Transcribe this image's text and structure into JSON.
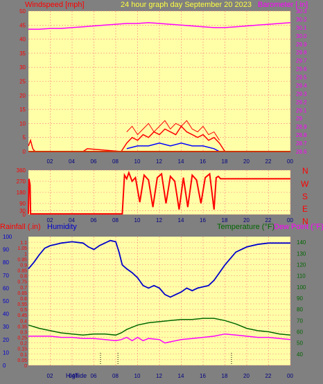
{
  "header": {
    "left_label": "Windspeed [mph]",
    "center_label": "24 hour graph day   September 20 2023",
    "right_label": "Barometer [.in]"
  },
  "lower_header": {
    "rain_label": "Rainfall (.in)",
    "humidity_label": "Humidity",
    "temp_label": "Temperature (°F)",
    "dew_label": "Dew Point (°F)"
  },
  "compass_labels": [
    "N",
    "W",
    "S",
    "E",
    "N"
  ],
  "colors": {
    "plot_bg": "#ffffa8",
    "grid": "#ff8080",
    "wind_left": "#ff0000",
    "barometer": "#ff00ff",
    "humidity": "#0000cc",
    "temperature": "#006600",
    "dewpoint": "#ff00ff",
    "header_yellow": "#ffff40"
  },
  "time_axis": {
    "ticks": [
      "02",
      "04",
      "06",
      "08",
      "10",
      "12",
      "14",
      "16",
      "18",
      "20",
      "22",
      "00"
    ],
    "bottom_marker_labels": [
      "High",
      "Tide"
    ]
  },
  "chart_data": [
    {
      "type": "line",
      "title": "24 hour graph day   September 20 2023",
      "x_unit": "hour of day",
      "xlim": [
        0,
        24
      ],
      "ylabel": "Windspeed [mph]",
      "ylim": [
        0,
        50
      ],
      "yticks": [
        0,
        5,
        10,
        15,
        20,
        25,
        30,
        35,
        40,
        45,
        50
      ],
      "y2label": "Barometer [.in]",
      "y2lim": [
        28.6,
        30.3
      ],
      "y2ticks": [
        28.6,
        28.7,
        28.8,
        28.9,
        29.0,
        29.1,
        29.2,
        29.3,
        29.4,
        29.5,
        29.6,
        29.7,
        29.8,
        29.9,
        30.0,
        30.1,
        30.2,
        30.3
      ],
      "series": [
        {
          "name": "Barometer",
          "axis": "right",
          "x": [
            0,
            1,
            2,
            3,
            4,
            5,
            6,
            7,
            8,
            9,
            10,
            11,
            12,
            13,
            14,
            15,
            16,
            17,
            18,
            19,
            20,
            21,
            22,
            23,
            24
          ],
          "values": [
            30.08,
            30.08,
            30.09,
            30.09,
            30.1,
            30.11,
            30.12,
            30.13,
            30.14,
            30.15,
            30.15,
            30.16,
            30.15,
            30.14,
            30.13,
            30.12,
            30.11,
            30.1,
            30.1,
            30.11,
            30.12,
            30.13,
            30.14,
            30.15,
            30.16
          ]
        },
        {
          "name": "Windspeed",
          "axis": "left",
          "x": [
            0,
            0.2,
            0.4,
            0.6,
            1,
            5,
            5.4,
            8.5,
            9,
            9.5,
            10,
            10.5,
            11,
            11.5,
            12,
            12.5,
            13,
            13.5,
            14,
            14.5,
            15,
            15.5,
            16,
            16.5,
            17,
            17.5,
            18,
            24
          ],
          "values": [
            2,
            4,
            1,
            0,
            0,
            0,
            1,
            0,
            3,
            5,
            4,
            6,
            5,
            7,
            6,
            8,
            7,
            6,
            9,
            7,
            6,
            5,
            6,
            4,
            5,
            3,
            0,
            0
          ]
        },
        {
          "name": "Gust",
          "axis": "left",
          "x": [
            9,
            9.5,
            10,
            10.5,
            11,
            11.5,
            12,
            12.5,
            13,
            13.5,
            14,
            14.5,
            15,
            15.5,
            16,
            16.5,
            17,
            17.5
          ],
          "values": [
            7,
            9,
            6,
            8,
            10,
            7,
            9,
            11,
            8,
            10,
            9,
            11,
            8,
            7,
            9,
            6,
            7,
            4
          ]
        },
        {
          "name": "Average",
          "axis": "left",
          "x": [
            9,
            10,
            11,
            12,
            13,
            14,
            15,
            16,
            17,
            17.5
          ],
          "values": [
            1,
            2,
            2,
            3,
            2,
            3,
            2,
            2,
            1,
            0
          ]
        }
      ]
    },
    {
      "type": "line",
      "ylabel": "Wind direction",
      "ylim": [
        0,
        360
      ],
      "yticks": [
        0,
        30,
        90,
        180,
        270,
        360
      ],
      "xlim": [
        0,
        24
      ],
      "series": [
        {
          "name": "Direction",
          "x": [
            0,
            0.05,
            0.15,
            0.2,
            8.6,
            8.8,
            9.0,
            9.2,
            9.5,
            9.8,
            10.2,
            10.6,
            11.0,
            11.4,
            11.8,
            12.2,
            12.6,
            13.0,
            13.4,
            13.8,
            14.2,
            14.6,
            15.0,
            15.4,
            15.8,
            16.2,
            16.6,
            17.0,
            17.2,
            17.4,
            17.6,
            24
          ],
          "values": [
            5,
            290,
            240,
            5,
            5,
            320,
            290,
            340,
            270,
            300,
            100,
            320,
            280,
            60,
            300,
            330,
            90,
            310,
            270,
            40,
            300,
            60,
            320,
            280,
            90,
            300,
            330,
            40,
            300,
            310,
            290,
            290
          ]
        }
      ]
    },
    {
      "type": "line",
      "xlim": [
        0,
        24
      ],
      "ylabel": "Rainfall (.in)",
      "ylim": [
        0,
        1.15
      ],
      "yticks": [
        0,
        0.05,
        0.1,
        0.15,
        0.2,
        0.25,
        0.3,
        0.35,
        0.4,
        0.45,
        0.5,
        0.55,
        0.6,
        0.65,
        0.7,
        0.75,
        0.8,
        0.85,
        0.9,
        0.95,
        1,
        1.05,
        1.1
      ],
      "humidity_ylim": [
        0,
        100
      ],
      "humidity_yticks": [
        0,
        10,
        20,
        30,
        40,
        50,
        60,
        70,
        80,
        90,
        100
      ],
      "y2label": "Temperature (°F)",
      "y2lim": [
        30,
        145
      ],
      "y2ticks": [
        40,
        50,
        60,
        70,
        80,
        90,
        100,
        110,
        120,
        130,
        140
      ],
      "series": [
        {
          "name": "Humidity",
          "axis": "humidity",
          "x": [
            0,
            0.5,
            1,
            1.5,
            2,
            2.5,
            3,
            4,
            5,
            5.5,
            6,
            6.5,
            7,
            7.5,
            8,
            8.3,
            8.6,
            9,
            9.5,
            10,
            10.5,
            11,
            11.5,
            12,
            12.5,
            13,
            13.5,
            14,
            14.5,
            15,
            15.5,
            16,
            16.5,
            17,
            17.5,
            18,
            18.5,
            19,
            20,
            21,
            22,
            23,
            24
          ],
          "values": [
            75,
            80,
            86,
            91,
            93,
            94,
            95,
            96,
            95,
            92,
            90,
            93,
            95,
            97,
            96,
            88,
            78,
            75,
            72,
            68,
            62,
            60,
            62,
            60,
            55,
            53,
            55,
            57,
            60,
            58,
            60,
            61,
            62,
            66,
            72,
            78,
            83,
            88,
            92,
            94,
            95,
            95,
            95
          ]
        },
        {
          "name": "Temperature",
          "axis": "right",
          "x": [
            0,
            1,
            2,
            3,
            4,
            5,
            6,
            7,
            8,
            8.5,
            9,
            10,
            11,
            12,
            13,
            14,
            15,
            16,
            17,
            18,
            19,
            20,
            21,
            22,
            23,
            24
          ],
          "values": [
            66,
            63,
            61,
            59,
            58,
            57,
            58,
            58,
            57,
            59,
            62,
            66,
            68,
            69,
            70,
            71,
            71,
            72,
            72,
            70,
            67,
            63,
            61,
            60,
            58,
            57
          ]
        },
        {
          "name": "Dew Point",
          "axis": "right",
          "x": [
            0,
            1,
            2,
            3,
            4,
            5,
            6,
            7,
            8,
            8.5,
            9,
            9.5,
            10,
            10.5,
            11,
            12,
            12.5,
            13,
            14,
            15,
            16,
            17,
            18,
            19,
            20,
            21,
            22,
            23,
            24
          ],
          "values": [
            56,
            56,
            56,
            55,
            55,
            54,
            54,
            53,
            52,
            53,
            55,
            52,
            55,
            52,
            54,
            53,
            50,
            51,
            53,
            54,
            55,
            56,
            58,
            57,
            56,
            55,
            55,
            54,
            53
          ]
        },
        {
          "name": "Rainfall",
          "axis": "left",
          "x": [
            0,
            24
          ],
          "values": [
            0,
            0
          ]
        }
      ]
    }
  ]
}
